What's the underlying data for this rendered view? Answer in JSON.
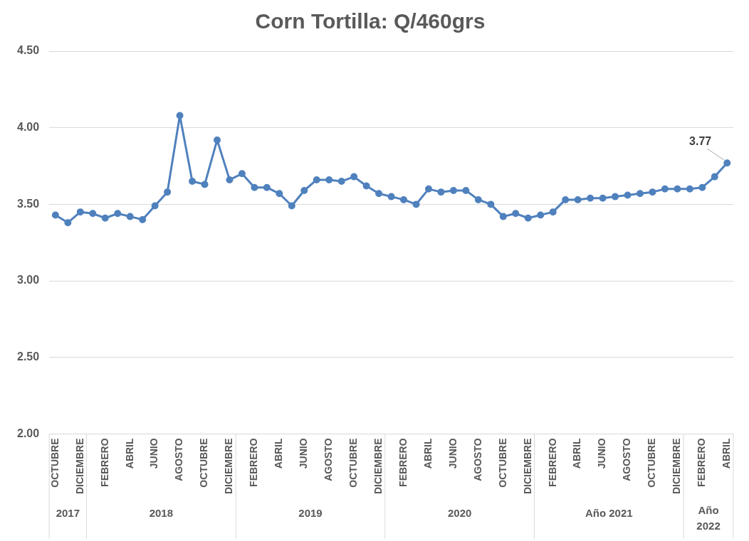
{
  "chart_data": {
    "type": "line",
    "title": "Corn Tortilla: Q/460grs",
    "categories": [
      "OCTUBRE",
      null,
      "DICIEMBRE",
      null,
      "FEBRERO",
      null,
      "ABRIL",
      null,
      "JUNIO",
      null,
      "AGOSTO",
      null,
      "OCTUBRE",
      null,
      "DICIEMBRE",
      null,
      "FEBRERO",
      null,
      "ABRIL",
      null,
      "JUNIO",
      null,
      "AGOSTO",
      null,
      "OCTUBRE",
      null,
      "DICIEMBRE",
      null,
      "FEBRERO",
      null,
      "ABRIL",
      null,
      "JUNIO",
      null,
      "AGOSTO",
      null,
      "OCTUBRE",
      null,
      "DICIEMBRE",
      null,
      "FEBRERO",
      null,
      "ABRIL",
      null,
      "JUNIO",
      null,
      "AGOSTO",
      null,
      "OCTUBRE",
      null,
      "DICIEMBRE",
      null,
      "FEBRERO",
      null,
      "ABRIL"
    ],
    "series": [
      {
        "color": "#4f81bd",
        "values": [
          3.43,
          3.38,
          3.45,
          3.44,
          3.41,
          3.44,
          3.42,
          3.4,
          3.49,
          3.58,
          4.08,
          3.65,
          3.63,
          3.92,
          3.66,
          3.7,
          3.61,
          3.61,
          3.57,
          3.49,
          3.59,
          3.66,
          3.66,
          3.65,
          3.68,
          3.62,
          3.57,
          3.55,
          3.53,
          3.5,
          3.6,
          3.58,
          3.59,
          3.59,
          3.53,
          3.5,
          3.42,
          3.44,
          3.41,
          3.43,
          3.45,
          3.53,
          3.53,
          3.54,
          3.54,
          3.55,
          3.56,
          3.57,
          3.58,
          3.6,
          3.6,
          3.6,
          3.61,
          3.68,
          3.77
        ],
        "value_labels": [
          null,
          null,
          null,
          null,
          null,
          null,
          null,
          null,
          null,
          null,
          null,
          null,
          null,
          null,
          null,
          null,
          null,
          null,
          null,
          null,
          null,
          null,
          null,
          null,
          null,
          null,
          null,
          null,
          null,
          null,
          null,
          null,
          null,
          null,
          null,
          null,
          null,
          null,
          null,
          null,
          null,
          null,
          null,
          null,
          null,
          null,
          null,
          null,
          null,
          null,
          null,
          null,
          null,
          null,
          "3.77"
        ]
      }
    ],
    "annotations": [
      "2017",
      "2018",
      "2019",
      "2020",
      "Año 2021",
      "Año 2022"
    ],
    "ylim": [
      2.0,
      4.5
    ],
    "yticks": [
      {
        "value": 2.0,
        "label": "2.00"
      },
      {
        "value": 2.5,
        "label": "2.50"
      },
      {
        "value": 3.0,
        "label": "3.00"
      },
      {
        "value": 3.5,
        "label": "3.50"
      },
      {
        "value": 4.0,
        "label": "4.00"
      },
      {
        "value": 4.5,
        "label": "4.50"
      }
    ],
    "grid": "y",
    "marker": "circle",
    "line_style": "solid",
    "legend": false
  }
}
